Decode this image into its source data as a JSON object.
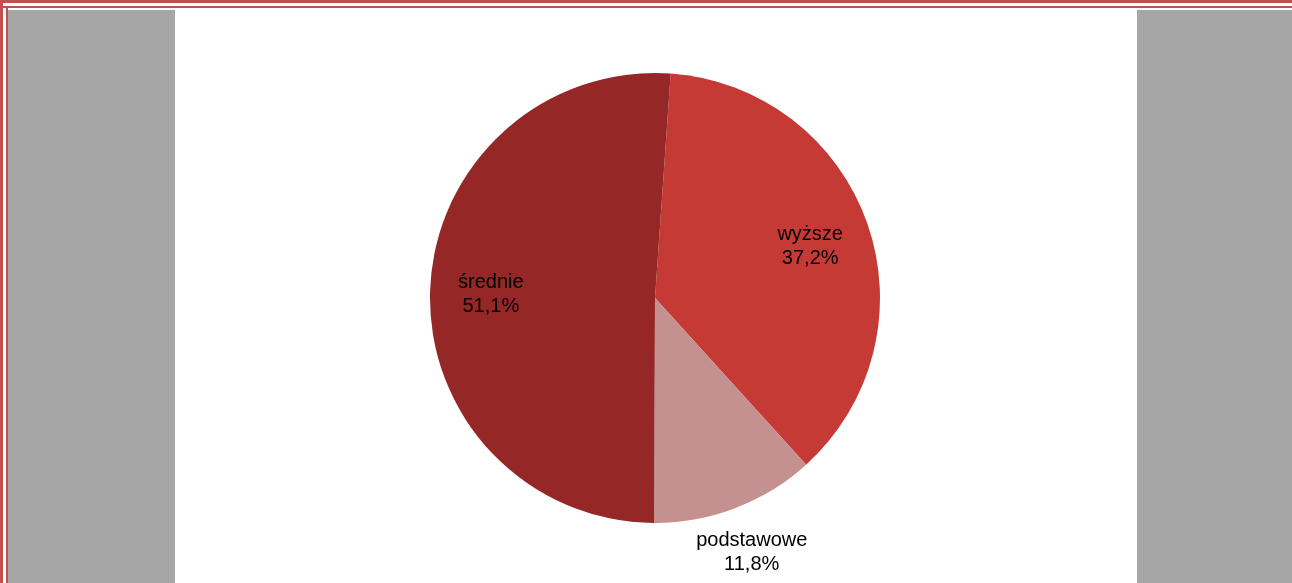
{
  "chart_data": {
    "type": "pie",
    "categories": [
      "wyższe",
      "podstawowe",
      "średnie"
    ],
    "values": [
      37.2,
      11.8,
      51.1
    ],
    "colors": [
      "#c63a36",
      "#c49090",
      "#952826"
    ],
    "value_labels": [
      "37,2%",
      "11,8%",
      "51,1%"
    ]
  }
}
